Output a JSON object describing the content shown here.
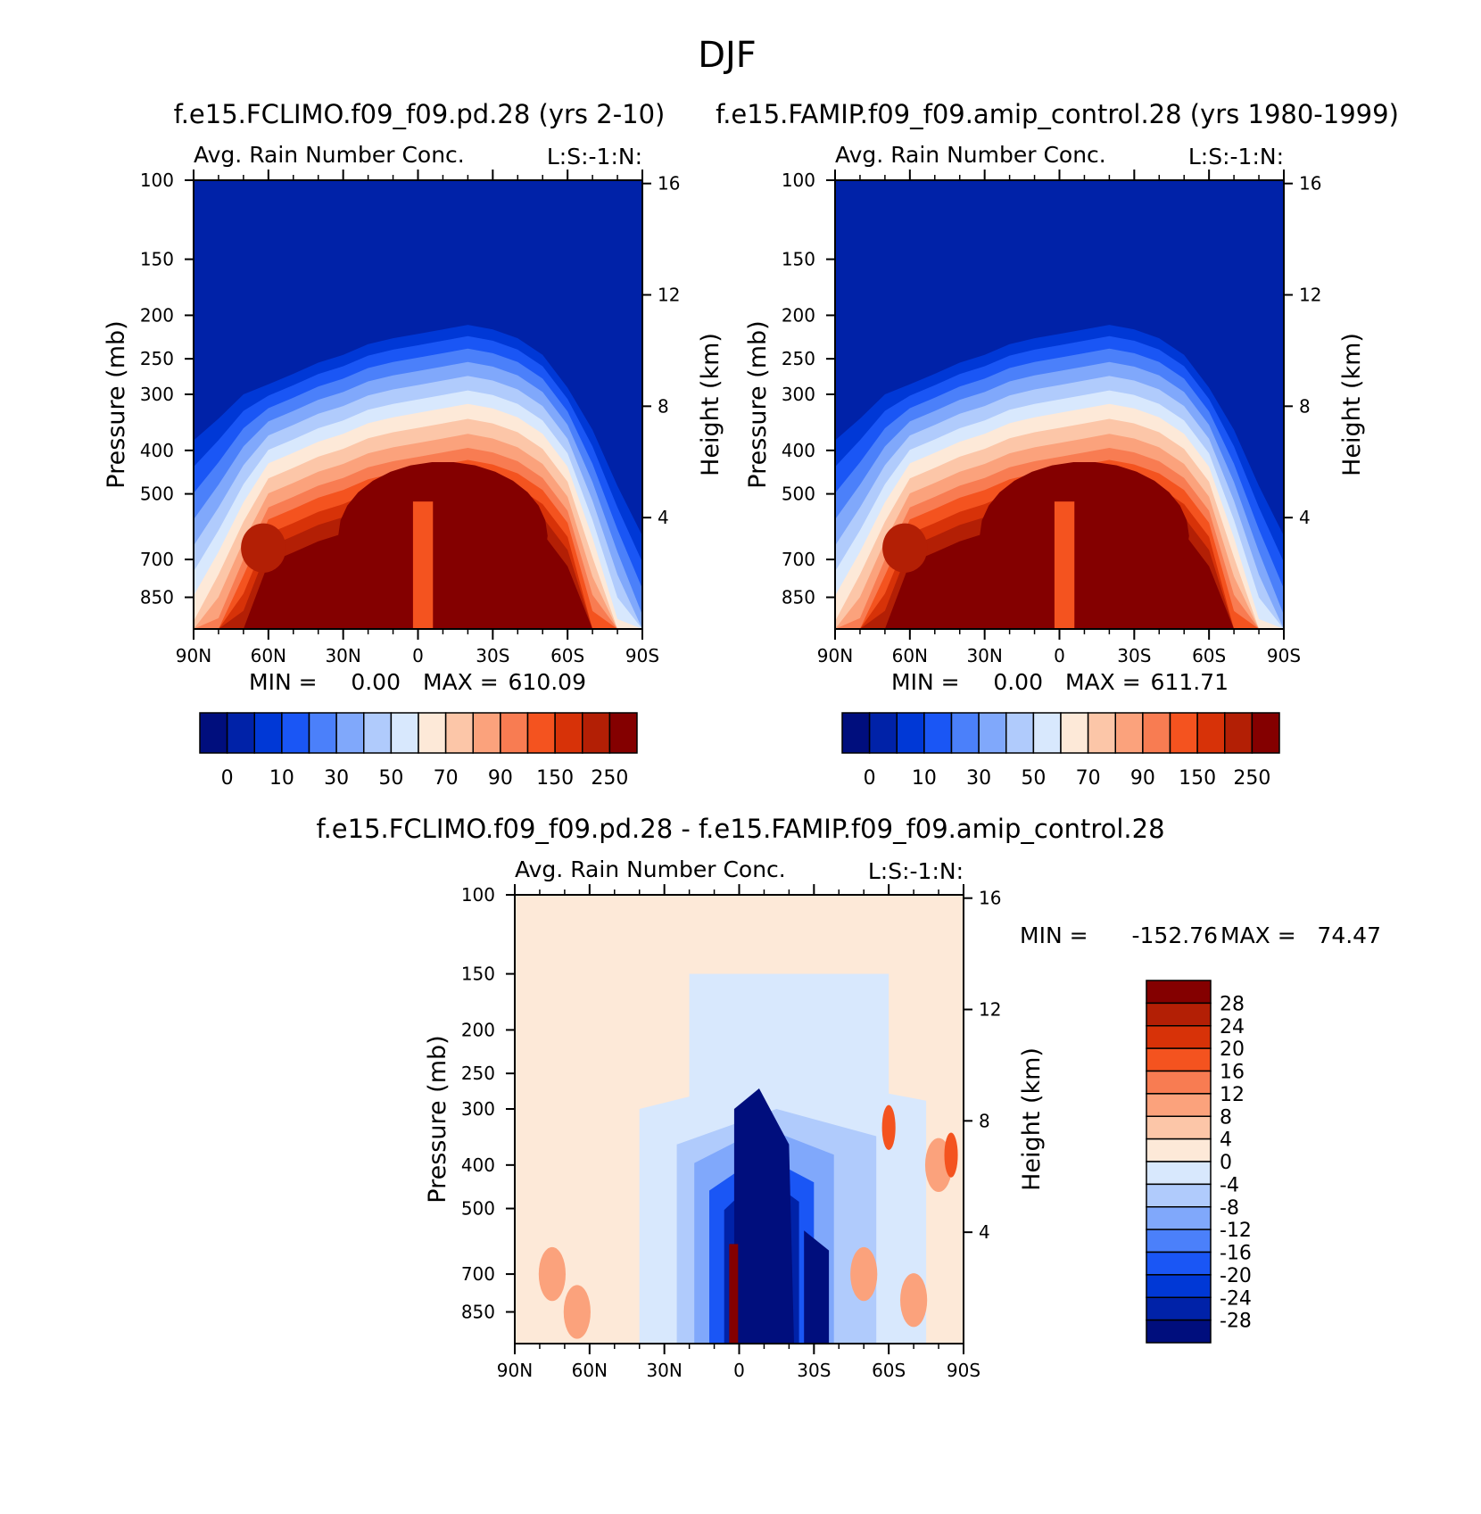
{
  "figure": {
    "title": "DJF"
  },
  "colors": {
    "abs_levels": [
      "#000e7d",
      "#0022a8",
      "#0038d6",
      "#1a56f5",
      "#4b80fa",
      "#80a8fb",
      "#b0cbfc",
      "#d8e8fd",
      "#fde9d8",
      "#fcc6a8",
      "#fba27c",
      "#f87c52",
      "#f4531f",
      "#d73208",
      "#b31f05",
      "#840000"
    ],
    "diff_levels": [
      "#000e7d",
      "#0022a8",
      "#0038d6",
      "#1a56f5",
      "#4b80fa",
      "#80a8fb",
      "#b0cbfc",
      "#d8e8fd",
      "#fde9d8",
      "#fcc6a8",
      "#fba27c",
      "#f87c52",
      "#f4531f",
      "#d73208",
      "#b31f05",
      "#840000"
    ]
  },
  "chart_data": [
    {
      "type": "heatmap",
      "id": "panel1",
      "case_title": "f.e15.FCLIMO.f09_f09.pd.28 (yrs 2-10)",
      "title": "Avg. Rain Number Conc.",
      "units": "L:S:-1:N:",
      "xlabel": "",
      "ylabel": "Pressure (mb)",
      "ylabel_right": "Height (km)",
      "x_ticks": [
        "90N",
        "60N",
        "30N",
        "0",
        "30S",
        "60S",
        "90S"
      ],
      "y_ticks": [
        100,
        150,
        200,
        250,
        300,
        400,
        500,
        700,
        850
      ],
      "y_ticks_right": [
        16,
        12,
        8,
        4
      ],
      "xlim": [
        -90,
        90
      ],
      "ylim": [
        100,
        1000
      ],
      "min_label": "MIN =",
      "min_value": "0.00",
      "max_label": "MAX =",
      "max_value": "610.09",
      "colorbar_labels": [
        "0",
        "10",
        "30",
        "50",
        "70",
        "90",
        "150",
        "250"
      ],
      "field_summary": "values near 0 above ~250 mb; maximum >250 in 500-850 mb from 30N to 60S"
    },
    {
      "type": "heatmap",
      "id": "panel2",
      "case_title": "f.e15.FAMIP.f09_f09.amip_control.28 (yrs 1980-1999)",
      "title": "Avg. Rain Number Conc.",
      "units": "L:S:-1:N:",
      "xlabel": "",
      "ylabel": "Pressure (mb)",
      "ylabel_right": "Height (km)",
      "x_ticks": [
        "90N",
        "60N",
        "30N",
        "0",
        "30S",
        "60S",
        "90S"
      ],
      "y_ticks": [
        100,
        150,
        200,
        250,
        300,
        400,
        500,
        700,
        850
      ],
      "y_ticks_right": [
        16,
        12,
        8,
        4
      ],
      "xlim": [
        -90,
        90
      ],
      "ylim": [
        100,
        1000
      ],
      "min_label": "MIN =",
      "min_value": "0.00",
      "max_label": "MAX =",
      "max_value": "611.71",
      "colorbar_labels": [
        "0",
        "10",
        "30",
        "50",
        "70",
        "90",
        "150",
        "250"
      ],
      "field_summary": "values near 0 above ~250 mb; maximum >250 in 500-850 mb from 30N to 60S"
    },
    {
      "type": "heatmap",
      "id": "panel3",
      "case_title": "f.e15.FCLIMO.f09_f09.pd.28 - f.e15.FAMIP.f09_f09.amip_control.28",
      "title": "Avg. Rain Number Conc.",
      "units": "L:S:-1:N:",
      "xlabel": "",
      "ylabel": "Pressure (mb)",
      "ylabel_right": "Height (km)",
      "x_ticks": [
        "90N",
        "60N",
        "30N",
        "0",
        "30S",
        "60S",
        "90S"
      ],
      "y_ticks": [
        100,
        150,
        200,
        250,
        300,
        400,
        500,
        700,
        850
      ],
      "y_ticks_right": [
        16,
        12,
        8,
        4
      ],
      "xlim": [
        -90,
        90
      ],
      "ylim": [
        100,
        1000
      ],
      "min_label": "MIN =",
      "min_value": "-152.76",
      "max_label": "MAX =",
      "max_value": "74.47",
      "colorbar_labels": [
        "28",
        "24",
        "20",
        "16",
        "12",
        "8",
        "4",
        "0",
        "-4",
        "-8",
        "-12",
        "-16",
        "-20",
        "-24",
        "-28"
      ],
      "field_summary": "near 0 above 150 mb; strong negative values (< -28) between 10N and 30S from 300 to 1000 mb"
    }
  ]
}
